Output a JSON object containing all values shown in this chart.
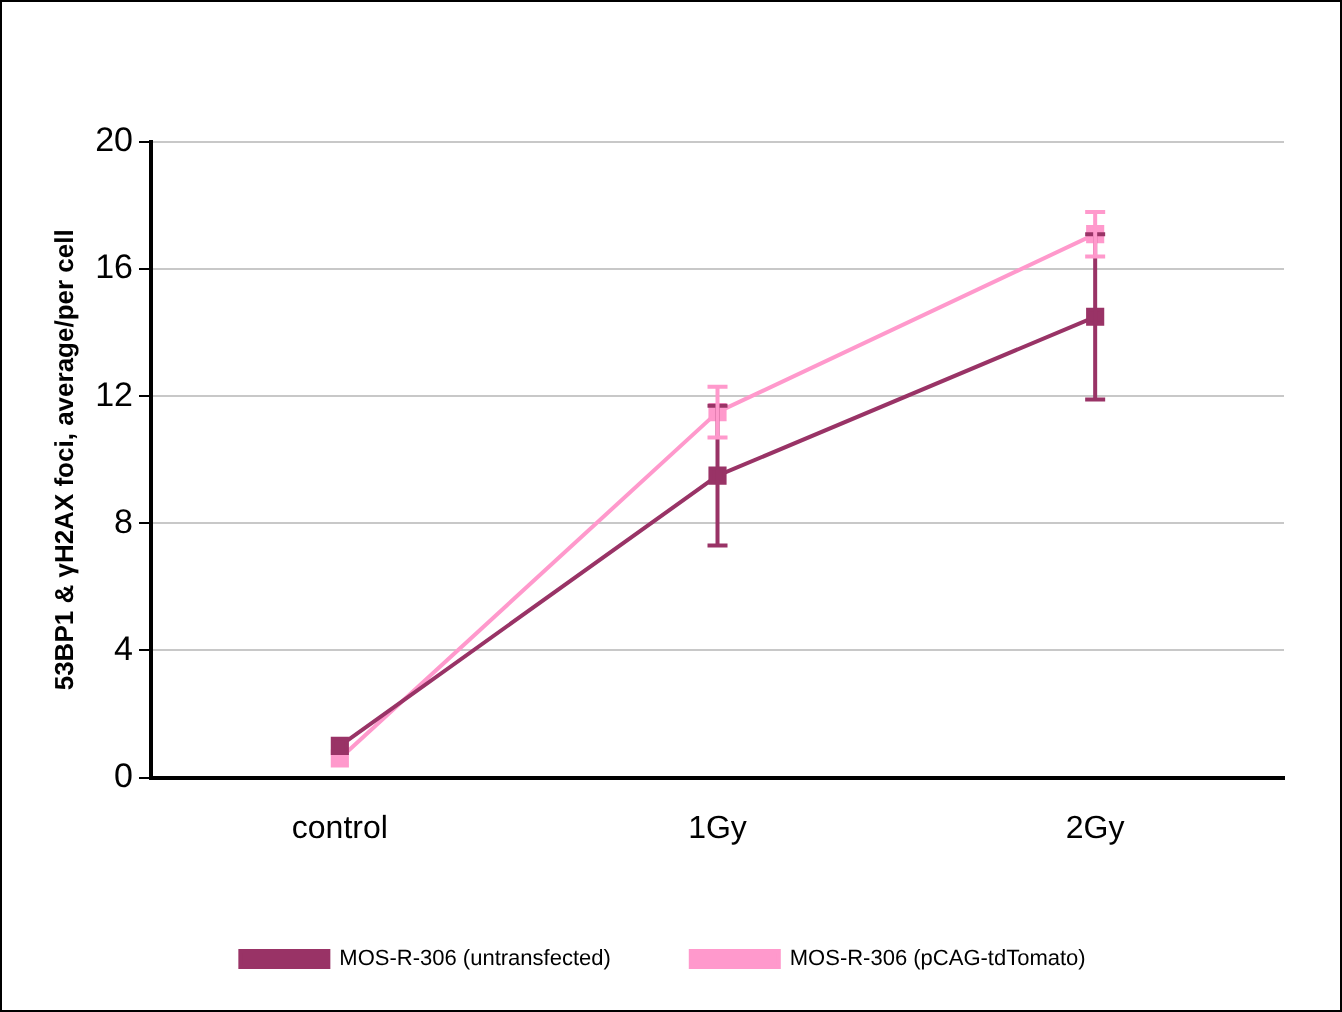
{
  "chart_data": {
    "type": "line",
    "ylabel": "53BP1 & γH2AX foci, average/per cell",
    "categories": [
      "control",
      "1Gy",
      "2Gy"
    ],
    "series": [
      {
        "name": "MOS-R-306 (untransfected)",
        "color": "#993366",
        "values": [
          1.0,
          9.5,
          14.5
        ],
        "errors": [
          null,
          2.2,
          2.6
        ]
      },
      {
        "name": "MOS-R-306 (pCAG-tdTomato)",
        "color": "#ff99cc",
        "values": [
          0.6,
          11.5,
          17.1
        ],
        "errors": [
          null,
          0.8,
          0.7
        ]
      }
    ],
    "ylim": [
      0,
      20
    ],
    "yticks": [
      0,
      4,
      8,
      12,
      16,
      20
    ],
    "grid": "y",
    "legend": "bottom",
    "marker": "square",
    "line_style": "solid"
  }
}
